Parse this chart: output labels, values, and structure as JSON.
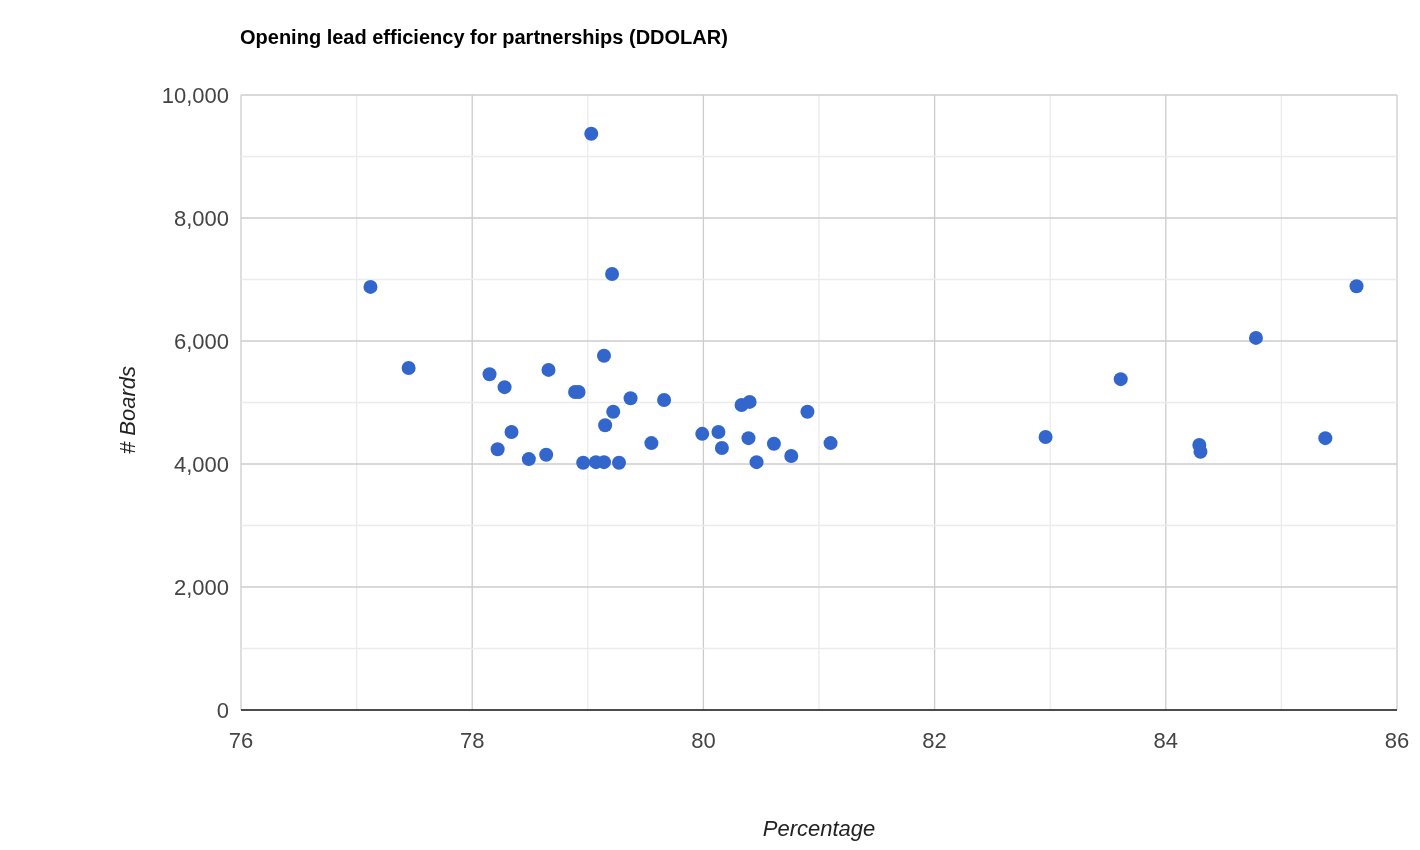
{
  "chart_data": {
    "type": "scatter",
    "title": "Opening lead efficiency for partnerships (DDOLAR)",
    "xlabel": "Percentage",
    "ylabel": "# Boards",
    "x": [
      77.12,
      77.45,
      78.15,
      78.28,
      78.22,
      78.34,
      78.49,
      78.64,
      78.66,
      78.89,
      78.92,
      78.96,
      79.03,
      79.07,
      79.14,
      79.14,
      79.15,
      79.21,
      79.22,
      79.27,
      79.37,
      79.55,
      79.66,
      79.99,
      80.13,
      80.16,
      80.33,
      80.4,
      80.39,
      80.46,
      80.61,
      80.76,
      80.9,
      81.1,
      82.96,
      83.61,
      84.29,
      84.3,
      84.78,
      85.38,
      85.65
    ],
    "series": [
      {
        "color": "#3366cc",
        "values": [
          6880,
          5560,
          5460,
          5250,
          4240,
          4520,
          4080,
          4150,
          5530,
          5170,
          5170,
          4020,
          9370,
          4030,
          4030,
          5760,
          4630,
          7090,
          4850,
          4020,
          5070,
          4340,
          5040,
          4490,
          4520,
          4260,
          4960,
          5010,
          4420,
          4030,
          4330,
          4130,
          4850,
          4340,
          4440,
          5380,
          4310,
          4200,
          6050,
          4420,
          6890
        ]
      }
    ],
    "xlim": [
      76,
      86
    ],
    "xticks": [
      76,
      {
        "value": 77,
        "label": null
      },
      78,
      {
        "value": 79,
        "label": null
      },
      80,
      {
        "value": 81,
        "label": null
      },
      82,
      {
        "value": 83,
        "label": null
      },
      84,
      {
        "value": 85,
        "label": null
      },
      86
    ],
    "ylim": [
      0,
      10000
    ],
    "yticks": [
      {
        "value": 0,
        "label": "0"
      },
      {
        "value": 1000,
        "label": null
      },
      {
        "value": 2000,
        "label": "2,000"
      },
      {
        "value": 3000,
        "label": null
      },
      {
        "value": 4000,
        "label": "4,000"
      },
      {
        "value": 5000,
        "label": null
      },
      {
        "value": 6000,
        "label": "6,000"
      },
      {
        "value": 7000,
        "label": null
      },
      {
        "value": 8000,
        "label": "8,000"
      },
      {
        "value": 9000,
        "label": null
      },
      {
        "value": 10000,
        "label": "10,000"
      }
    ],
    "grid": true,
    "marker": "circle"
  }
}
